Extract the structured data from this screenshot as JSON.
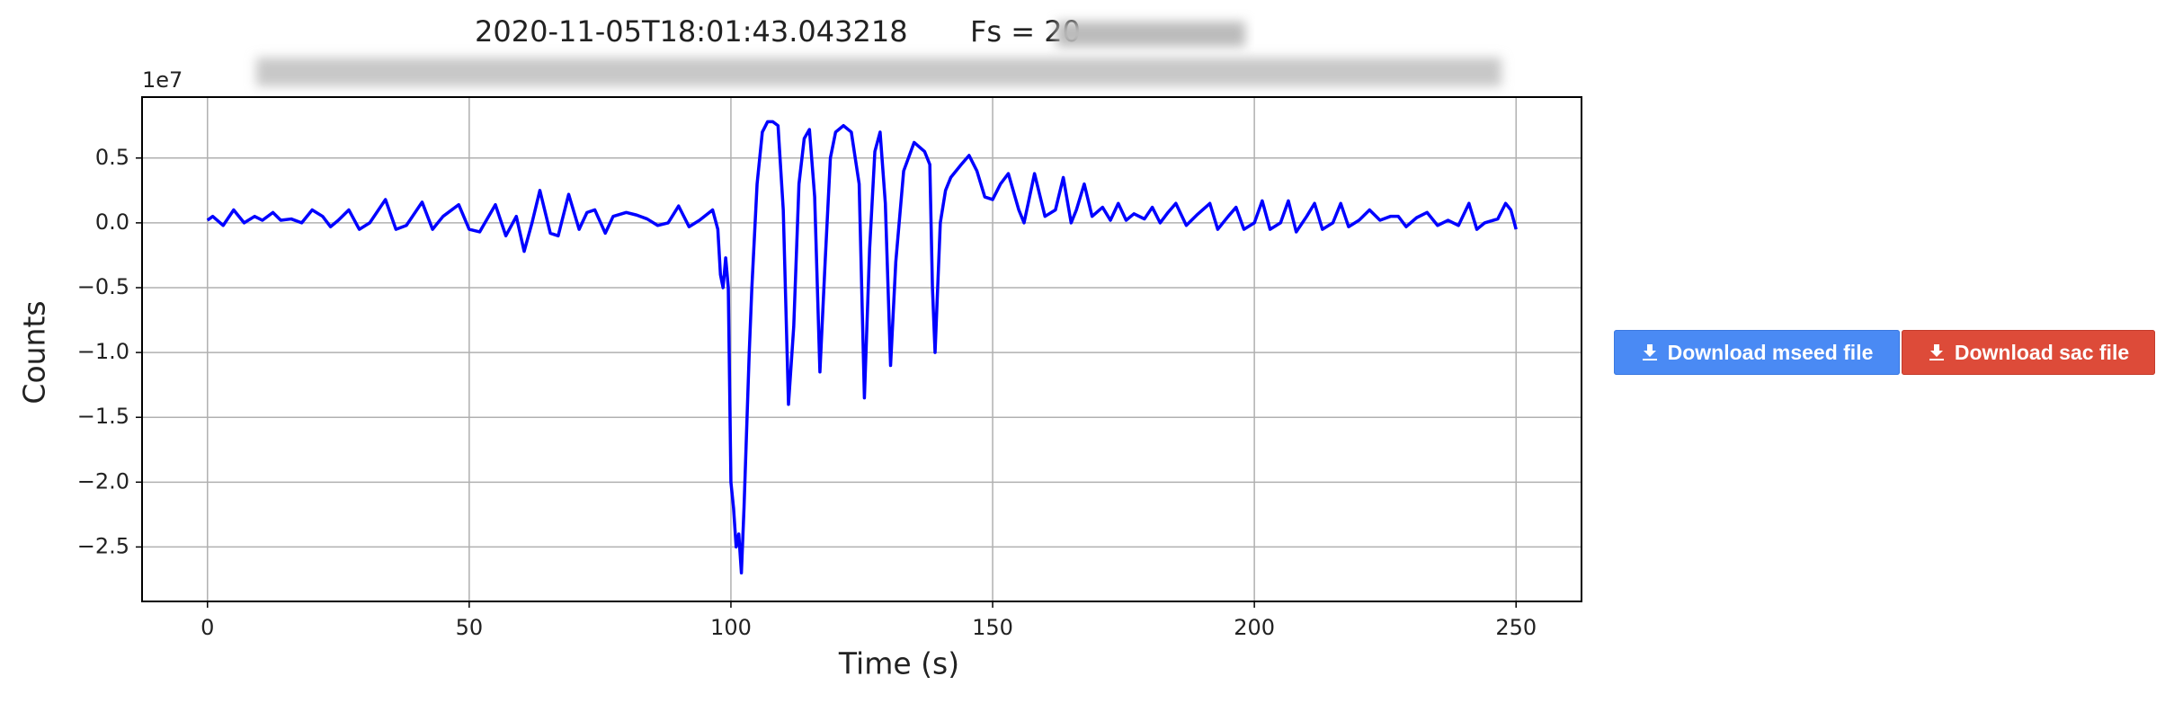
{
  "chart_data": {
    "type": "line",
    "title": "2020-11-05T18:01:43.043218",
    "subtitle": "Fs = 20",
    "xlabel": "Time (s)",
    "ylabel": "Counts",
    "offset_label": "1e7",
    "xlim": [
      -12.5,
      262.5
    ],
    "ylim": [
      -2.92,
      0.97
    ],
    "xticks": [
      0,
      50,
      100,
      150,
      200,
      250
    ],
    "yticks": [
      0.5,
      {
        "value": 0,
        "label": "0.0"
      },
      {
        "value": -0.5,
        "label": "−0.5"
      },
      {
        "value": -1,
        "label": "−1.0"
      },
      {
        "value": -1.5,
        "label": "−1.5"
      },
      {
        "value": -2,
        "label": "−2.0"
      },
      {
        "value": -2.5,
        "label": "−2.5"
      }
    ],
    "grid": true,
    "x": [
      0,
      1,
      3,
      5,
      7,
      9,
      10.5,
      12.5,
      14,
      16,
      18,
      20,
      22,
      23.5,
      25,
      27,
      29,
      31,
      34,
      36,
      38,
      41,
      43,
      45,
      48,
      50,
      52,
      55,
      57,
      59,
      60.5,
      62,
      63.5,
      65.5,
      67,
      69,
      71,
      72.5,
      74,
      76,
      77.5,
      80,
      82,
      84,
      86,
      88,
      90,
      92,
      94,
      96.5,
      97.5,
      98,
      98.5,
      99,
      99.5,
      100,
      100.5,
      101,
      101.5,
      102,
      102.5,
      103.5,
      104,
      105,
      106,
      107,
      108,
      109,
      110,
      111,
      112,
      113,
      114,
      115,
      116,
      117,
      118,
      119,
      120,
      121.5,
      123,
      124.5,
      125.5,
      126.5,
      127.5,
      128.5,
      129.5,
      130.5,
      131.5,
      133,
      135,
      137,
      138,
      138.5,
      139,
      140,
      141,
      142,
      144,
      145.5,
      147,
      148.5,
      150,
      151.5,
      153,
      155,
      156,
      158,
      160,
      162,
      163.5,
      165,
      166,
      167.5,
      169,
      171,
      172.5,
      174,
      175.5,
      177,
      179,
      180.5,
      182,
      183.5,
      185,
      187,
      189,
      191.5,
      193,
      195,
      196.5,
      198,
      200,
      201.5,
      203,
      205,
      206.5,
      208,
      210,
      211.5,
      213,
      215,
      216.5,
      218,
      220,
      222,
      224,
      226,
      227.5,
      229,
      231,
      233,
      235,
      237,
      239,
      241,
      242.5,
      244,
      246.5,
      248,
      249,
      250
    ],
    "series": [
      {
        "color": "#0000ff",
        "values": [
          0.02,
          0.05,
          -0.02,
          0.1,
          0.0,
          0.05,
          0.02,
          0.08,
          0.02,
          0.03,
          0.0,
          0.1,
          0.05,
          -0.03,
          0.02,
          0.1,
          -0.05,
          0.0,
          0.18,
          -0.05,
          -0.02,
          0.16,
          -0.05,
          0.05,
          0.14,
          -0.05,
          -0.07,
          0.14,
          -0.1,
          0.05,
          -0.22,
          0.0,
          0.25,
          -0.08,
          -0.1,
          0.22,
          -0.05,
          0.08,
          0.1,
          -0.08,
          0.05,
          0.08,
          0.06,
          0.03,
          -0.02,
          0.0,
          0.13,
          -0.03,
          0.02,
          0.1,
          -0.05,
          -0.4,
          -0.5,
          -0.27,
          -0.5,
          -2.0,
          -2.2,
          -2.5,
          -2.4,
          -2.7,
          -2.2,
          -1.0,
          -0.5,
          0.3,
          0.7,
          0.78,
          0.78,
          0.75,
          0.1,
          -1.4,
          -0.8,
          0.3,
          0.65,
          0.72,
          0.2,
          -1.15,
          -0.3,
          0.5,
          0.7,
          0.75,
          0.7,
          0.3,
          -1.35,
          -0.2,
          0.55,
          0.7,
          0.15,
          -1.1,
          -0.3,
          0.4,
          0.62,
          0.55,
          0.45,
          -0.5,
          -1.0,
          0.0,
          0.25,
          0.35,
          0.45,
          0.52,
          0.4,
          0.2,
          0.18,
          0.3,
          0.38,
          0.1,
          0.0,
          0.38,
          0.05,
          0.1,
          0.35,
          0.0,
          0.1,
          0.3,
          0.05,
          0.12,
          0.02,
          0.15,
          0.02,
          0.07,
          0.03,
          0.12,
          0.0,
          0.08,
          0.15,
          -0.02,
          0.06,
          0.15,
          -0.05,
          0.05,
          0.12,
          -0.05,
          0.0,
          0.17,
          -0.05,
          0.0,
          0.17,
          -0.07,
          0.05,
          0.15,
          -0.05,
          0.0,
          0.15,
          -0.03,
          0.02,
          0.1,
          0.02,
          0.05,
          0.05,
          -0.03,
          0.04,
          0.08,
          -0.02,
          0.02,
          -0.02,
          0.15,
          -0.05,
          0.0,
          0.03,
          0.15,
          0.1,
          -0.05
        ]
      }
    ]
  },
  "buttons": [
    "Download mseed file",
    "Download sac file"
  ]
}
